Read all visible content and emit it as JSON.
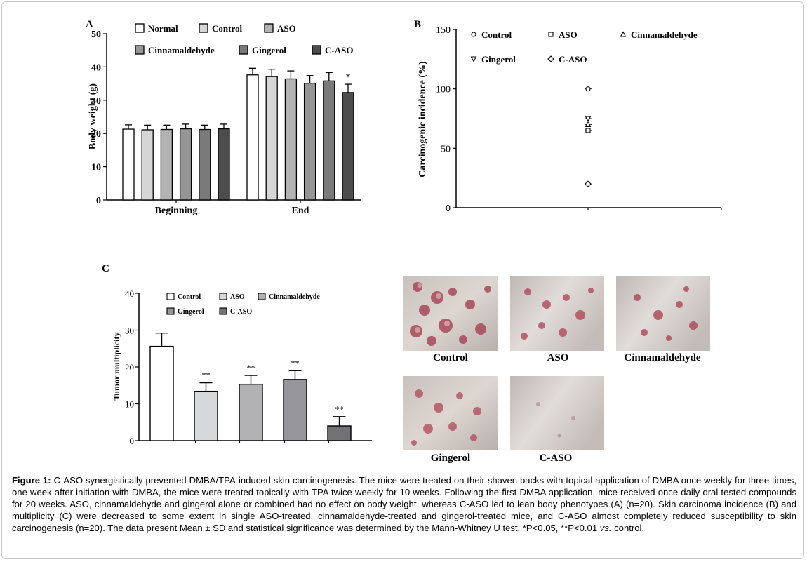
{
  "panel_labels": {
    "a": "A",
    "b": "B",
    "c": "C"
  },
  "chart_data": [
    {
      "id": "A",
      "type": "bar",
      "title": "",
      "ylabel": "Body weight (g)",
      "xlabel": "",
      "ylim": [
        0,
        50
      ],
      "yticks": [
        0,
        10,
        20,
        30,
        40,
        50
      ],
      "categories": [
        "Beginning",
        "End"
      ],
      "series": [
        {
          "name": "Normal",
          "color": "#ffffff",
          "values": [
            21.3,
            37.6
          ],
          "errors": [
            1.3,
            2.0
          ],
          "sig": [
            "",
            ""
          ]
        },
        {
          "name": "Control",
          "color": "#d6d6d6",
          "values": [
            21.1,
            37.1
          ],
          "errors": [
            1.4,
            2.2
          ],
          "sig": [
            "",
            ""
          ]
        },
        {
          "name": "ASO",
          "color": "#b3b3b3",
          "values": [
            21.2,
            36.4
          ],
          "errors": [
            1.3,
            2.4
          ],
          "sig": [
            "",
            ""
          ]
        },
        {
          "name": "Cinnamaldehyde",
          "color": "#959595",
          "values": [
            21.4,
            35.1
          ],
          "errors": [
            1.4,
            2.3
          ],
          "sig": [
            "",
            ""
          ]
        },
        {
          "name": "Gingerol",
          "color": "#7a7a7a",
          "values": [
            21.2,
            35.8
          ],
          "errors": [
            1.3,
            2.5
          ],
          "sig": [
            "",
            ""
          ]
        },
        {
          "name": "C-ASO",
          "color": "#4d4d4d",
          "values": [
            21.4,
            32.3
          ],
          "errors": [
            1.4,
            2.5
          ],
          "sig": [
            "",
            "*"
          ]
        }
      ]
    },
    {
      "id": "B",
      "type": "scatter",
      "title": "",
      "ylabel": "Carcinogenic incidence (%)",
      "xlabel": "",
      "ylim": [
        0,
        150
      ],
      "yticks": [
        0,
        50,
        100,
        150
      ],
      "series": [
        {
          "name": "Control",
          "marker": "circle",
          "value": 100
        },
        {
          "name": "ASO",
          "marker": "square",
          "value": 65
        },
        {
          "name": "Cinnamaldehyde",
          "marker": "triangle-up",
          "value": 70
        },
        {
          "name": "Gingerol",
          "marker": "triangle-down",
          "value": 75
        },
        {
          "name": "C-ASO",
          "marker": "diamond",
          "value": 20
        }
      ]
    },
    {
      "id": "C",
      "type": "bar",
      "title": "",
      "ylabel": "Tumor multiplicity",
      "xlabel": "",
      "ylim": [
        0,
        40
      ],
      "yticks": [
        0,
        10,
        20,
        30,
        40
      ],
      "categories": [
        "Control",
        "ASO",
        "Cinnamaldehyde",
        "Gingerol",
        "C-ASO"
      ],
      "series": [
        {
          "name": "Control",
          "color": "#ffffff",
          "value": 25.6,
          "error": 3.6,
          "sig": ""
        },
        {
          "name": "ASO",
          "color": "#d6d9dc",
          "value": 13.4,
          "error": 2.3,
          "sig": "**"
        },
        {
          "name": "Cinnamaldehyde",
          "color": "#b1b1b4",
          "value": 15.3,
          "error": 2.4,
          "sig": "**"
        },
        {
          "name": "Gingerol",
          "color": "#95959a",
          "value": 16.6,
          "error": 2.4,
          "sig": "**"
        },
        {
          "name": "C-ASO",
          "color": "#717176",
          "value": 4.0,
          "error": 2.5,
          "sig": "**"
        }
      ]
    }
  ],
  "photos": [
    {
      "label": "Control"
    },
    {
      "label": "ASO"
    },
    {
      "label": "Cinnamaldehyde"
    },
    {
      "label": "Gingerol"
    },
    {
      "label": "C-ASO"
    }
  ],
  "caption": {
    "title": "Figure 1:",
    "text": " C-ASO synergistically prevented DMBA/TPA-induced skin carcinogenesis. The mice were treated on their shaven backs with topical application of DMBA once weekly for three times, one week after initiation with DMBA, the mice were treated topically with TPA twice weekly for 10 weeks. Following the first DMBA application, mice received once daily oral tested compounds for 20 weeks. ASO, cinnamaldehyde and gingerol alone or combined had no effect on body weight, whereas C-ASO led to lean body phenotypes (A) (n=20). Skin carcinoma incidence (B) and multiplicity (C) were decreased to some extent in single ASO-treated, cinnamaldehyde-treated and gingerol-treated mice, and C-ASO almost completely reduced susceptibility to skin carcinogenesis (n=20). The data present Mean ± SD and statistical significance was determined by the Mann-Whitney U test. *P<0.05, **P<0.01 ",
    "vs": "vs.",
    "tail": " control."
  }
}
